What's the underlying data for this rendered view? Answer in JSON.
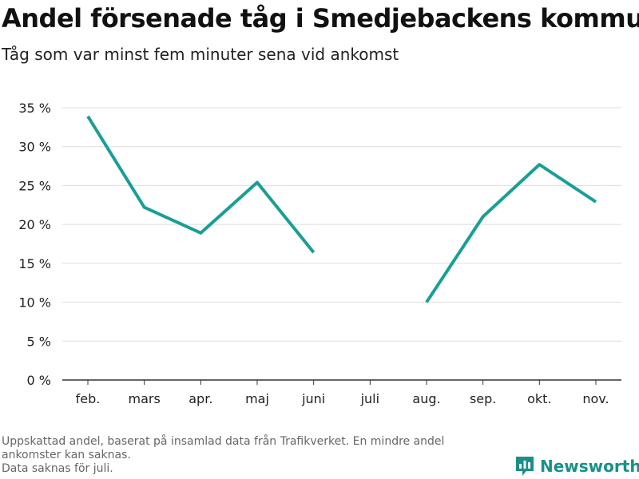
{
  "header": {
    "title": "Andel försenade tåg i Smedjebackens kommun",
    "subtitle": "Tåg som var minst fem minuter sena vid ankomst"
  },
  "footer": {
    "note_line1": "Uppskattad andel, baserat på insamlad data från Trafikverket. En mindre andel",
    "note_line2": "ankomster kan saknas.",
    "note_line3": "Data saknas för juli.",
    "logo_text": "Newsworthy"
  },
  "colors": {
    "line": "#1a9e96",
    "grid": "#dddddd",
    "axis": "#333333",
    "logo": "#1a8f8a"
  },
  "chart_data": {
    "type": "line",
    "title": "Andel försenade tåg i Smedjebackens kommun",
    "subtitle": "Tåg som var minst fem minuter sena vid ankomst",
    "categories": [
      "feb.",
      "mars",
      "apr.",
      "maj",
      "juni",
      "juli",
      "aug.",
      "sep.",
      "okt.",
      "nov."
    ],
    "series": [
      {
        "values": [
          33.9,
          22.2,
          18.9,
          25.4,
          16.4,
          null,
          10.0,
          21.0,
          27.7,
          22.9
        ]
      }
    ],
    "y_ticks": [
      0,
      5,
      10,
      15,
      20,
      25,
      30,
      35
    ],
    "y_tick_labels": [
      "0 %",
      "5 %",
      "10 %",
      "15 %",
      "20 %",
      "25 %",
      "30 %",
      "35 %"
    ],
    "ylim": [
      0,
      35
    ],
    "grid": true,
    "legend": "none"
  }
}
